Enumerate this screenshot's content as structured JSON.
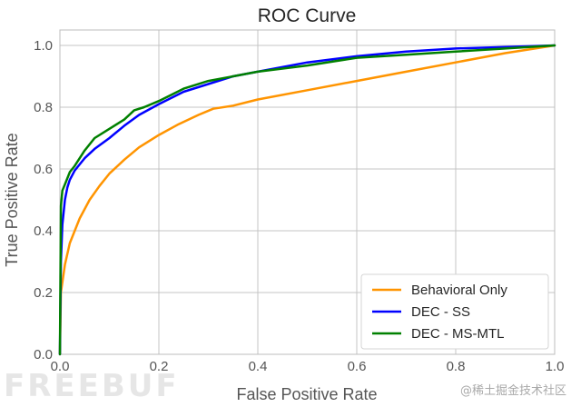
{
  "chart_data": {
    "type": "line",
    "title": "ROC Curve",
    "xlabel": "False Positive Rate",
    "ylabel": "True Positive Rate",
    "xlim": [
      0.0,
      1.0
    ],
    "ylim": [
      0.0,
      1.05
    ],
    "xticks": [
      "0.0",
      "0.2",
      "0.4",
      "0.6",
      "0.8",
      "1.0"
    ],
    "yticks": [
      "0.0",
      "0.2",
      "0.4",
      "0.6",
      "0.8",
      "1.0"
    ],
    "grid": true,
    "legend_position": "lower-right",
    "series": [
      {
        "name": "Behavioral Only",
        "color": "#ff9400",
        "x": [
          0.0,
          0.002,
          0.01,
          0.02,
          0.04,
          0.06,
          0.08,
          0.1,
          0.13,
          0.16,
          0.2,
          0.24,
          0.28,
          0.31,
          0.35,
          0.4,
          0.5,
          0.6,
          0.7,
          0.8,
          0.9,
          1.0
        ],
        "y": [
          0.0,
          0.2,
          0.29,
          0.36,
          0.44,
          0.5,
          0.545,
          0.585,
          0.63,
          0.67,
          0.71,
          0.745,
          0.775,
          0.795,
          0.805,
          0.825,
          0.855,
          0.885,
          0.915,
          0.945,
          0.975,
          1.0
        ]
      },
      {
        "name": "DEC - SS",
        "color": "#0000ff",
        "x": [
          0.0,
          0.002,
          0.005,
          0.01,
          0.015,
          0.02,
          0.03,
          0.04,
          0.05,
          0.07,
          0.1,
          0.13,
          0.16,
          0.2,
          0.25,
          0.3,
          0.35,
          0.4,
          0.5,
          0.6,
          0.7,
          0.8,
          0.9,
          1.0
        ],
        "y": [
          0.0,
          0.3,
          0.42,
          0.5,
          0.54,
          0.565,
          0.595,
          0.615,
          0.635,
          0.665,
          0.7,
          0.74,
          0.775,
          0.81,
          0.85,
          0.875,
          0.9,
          0.915,
          0.945,
          0.965,
          0.98,
          0.99,
          0.995,
          1.0
        ]
      },
      {
        "name": "DEC - MS-MTL",
        "color": "#008000",
        "x": [
          0.0,
          0.002,
          0.005,
          0.01,
          0.02,
          0.03,
          0.05,
          0.07,
          0.1,
          0.13,
          0.15,
          0.17,
          0.2,
          0.25,
          0.3,
          0.35,
          0.4,
          0.5,
          0.6,
          0.7,
          0.8,
          0.9,
          1.0
        ],
        "y": [
          0.0,
          0.48,
          0.53,
          0.55,
          0.59,
          0.61,
          0.66,
          0.7,
          0.73,
          0.76,
          0.79,
          0.8,
          0.82,
          0.86,
          0.885,
          0.9,
          0.915,
          0.935,
          0.96,
          0.97,
          0.98,
          0.99,
          1.0
        ]
      }
    ]
  },
  "watermarks": {
    "left": "FREEBUF",
    "right": "@稀土掘金技术社区"
  }
}
